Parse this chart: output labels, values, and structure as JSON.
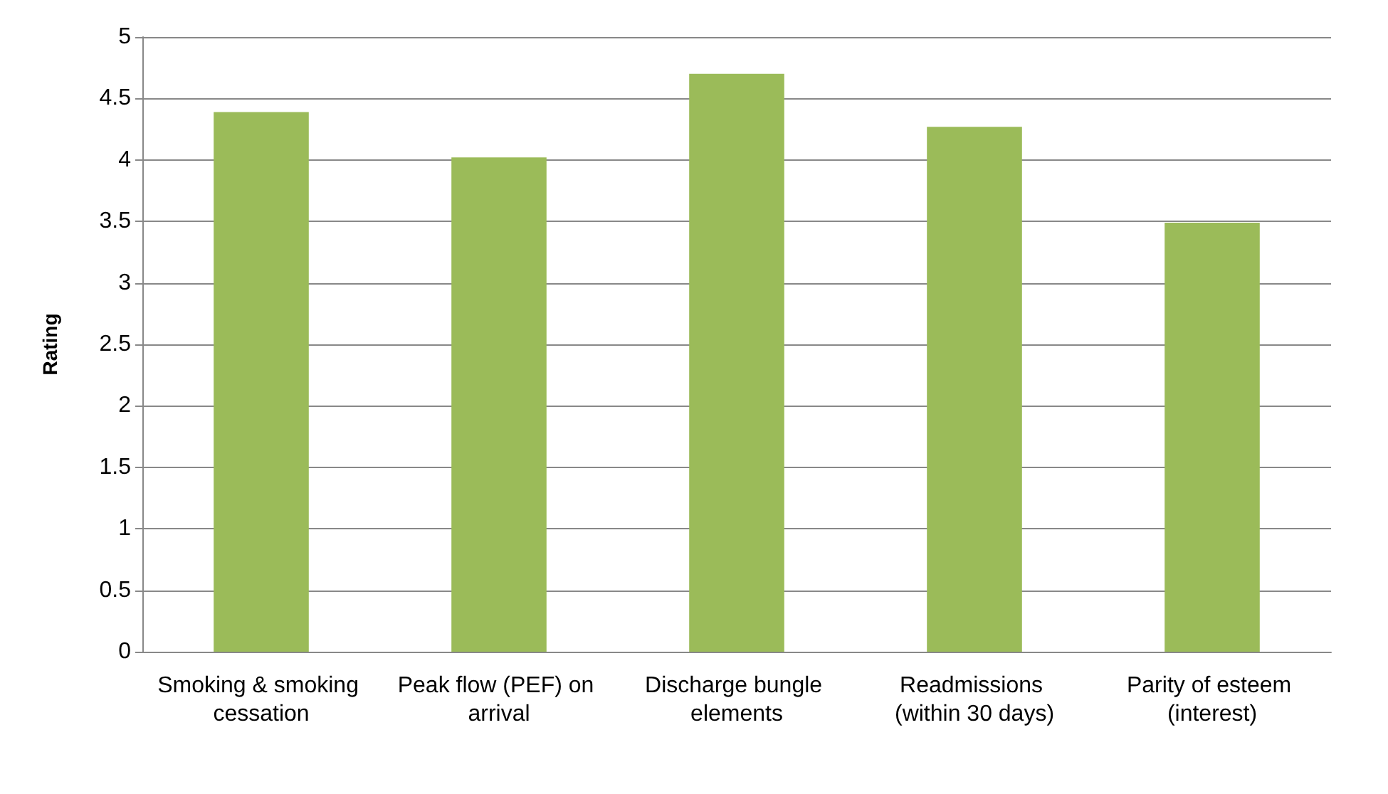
{
  "chart_data": {
    "type": "bar",
    "ylabel": "Rating",
    "categories": [
      "Smoking & smoking cessation",
      "Peak flow (PEF) on arrival",
      "Discharge bungle elements",
      "Readmissions (within 30 days)",
      "Parity of esteem (interest)"
    ],
    "values": [
      4.39,
      4.02,
      4.7,
      4.27,
      3.49
    ],
    "color": "#9bbb59",
    "ylim": [
      0,
      5
    ],
    "yticks": [
      0,
      0.5,
      1,
      1.5,
      2,
      2.5,
      3,
      3.5,
      4,
      4.5,
      5
    ],
    "grid": "y"
  }
}
